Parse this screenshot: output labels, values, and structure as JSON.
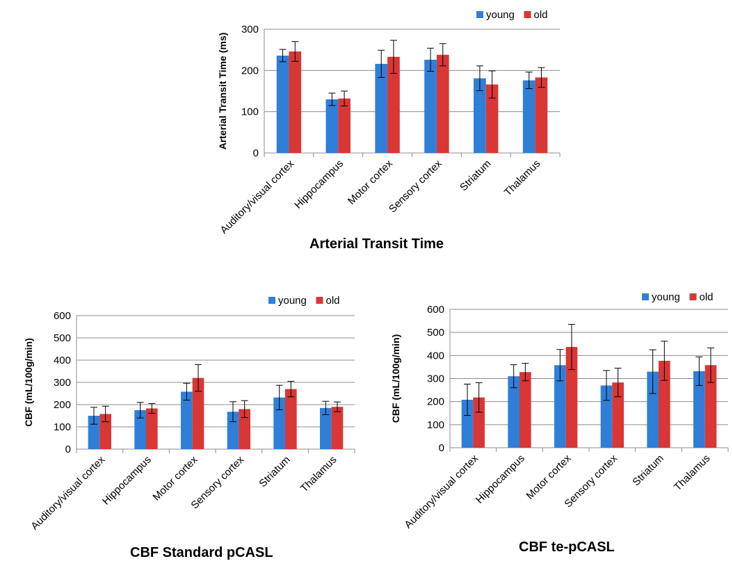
{
  "colors": {
    "young": "#2f7fd8",
    "old": "#d93636"
  },
  "chart_data": [
    {
      "type": "bar",
      "caption": "Arterial Transit Time",
      "ylabel": "Arterial Transit Time (ms)",
      "ylim": [
        0,
        300
      ],
      "yticks": [
        "0",
        "100",
        "200",
        "300"
      ],
      "grid": true,
      "legend_position": "top-right",
      "categories": [
        "Auditory/visual cortex",
        "Hippocampus",
        "Motor cortex",
        "Sensory cortex",
        "Striatum",
        "Thalamus"
      ],
      "series": [
        {
          "name": "young",
          "values": [
            236,
            130,
            216,
            226,
            181,
            176
          ],
          "errors": [
            15,
            15,
            33,
            28,
            30,
            20
          ]
        },
        {
          "name": "old",
          "values": [
            246,
            132,
            233,
            238,
            166,
            183
          ],
          "errors": [
            24,
            18,
            40,
            27,
            33,
            24
          ]
        }
      ]
    },
    {
      "type": "bar",
      "caption": "CBF Standard pCASL",
      "ylabel": "CBF (mL/100g/min)",
      "ylim": [
        0,
        600
      ],
      "yticks": [
        "0",
        "100",
        "200",
        "300",
        "400",
        "500",
        "600"
      ],
      "grid": true,
      "legend_position": "top-right",
      "categories": [
        "Auditory/visual cortex",
        "Hippocampus",
        "Motor cortex",
        "Sensory cortex",
        "Striatum",
        "Thalamus"
      ],
      "series": [
        {
          "name": "young",
          "values": [
            150,
            175,
            258,
            168,
            232,
            185
          ],
          "errors": [
            38,
            35,
            38,
            45,
            55,
            30
          ]
        },
        {
          "name": "old",
          "values": [
            158,
            183,
            320,
            180,
            270,
            190
          ],
          "errors": [
            35,
            22,
            60,
            38,
            35,
            22
          ]
        }
      ]
    },
    {
      "type": "bar",
      "caption": "CBF te-pCASL",
      "ylabel": "CBF (mL/100g/min)",
      "ylim": [
        0,
        600
      ],
      "yticks": [
        "0",
        "100",
        "200",
        "300",
        "400",
        "500",
        "600"
      ],
      "grid": true,
      "legend_position": "top-right",
      "categories": [
        "Auditory/visual cortex",
        "Hippocampus",
        "Motor cortex",
        "Sensory cortex",
        "Striatum",
        "Thalamus"
      ],
      "series": [
        {
          "name": "young",
          "values": [
            208,
            310,
            358,
            270,
            330,
            332
          ],
          "errors": [
            68,
            50,
            68,
            65,
            95,
            62
          ]
        },
        {
          "name": "old",
          "values": [
            218,
            328,
            437,
            283,
            377,
            358
          ],
          "errors": [
            64,
            38,
            98,
            62,
            85,
            75
          ]
        }
      ]
    }
  ]
}
